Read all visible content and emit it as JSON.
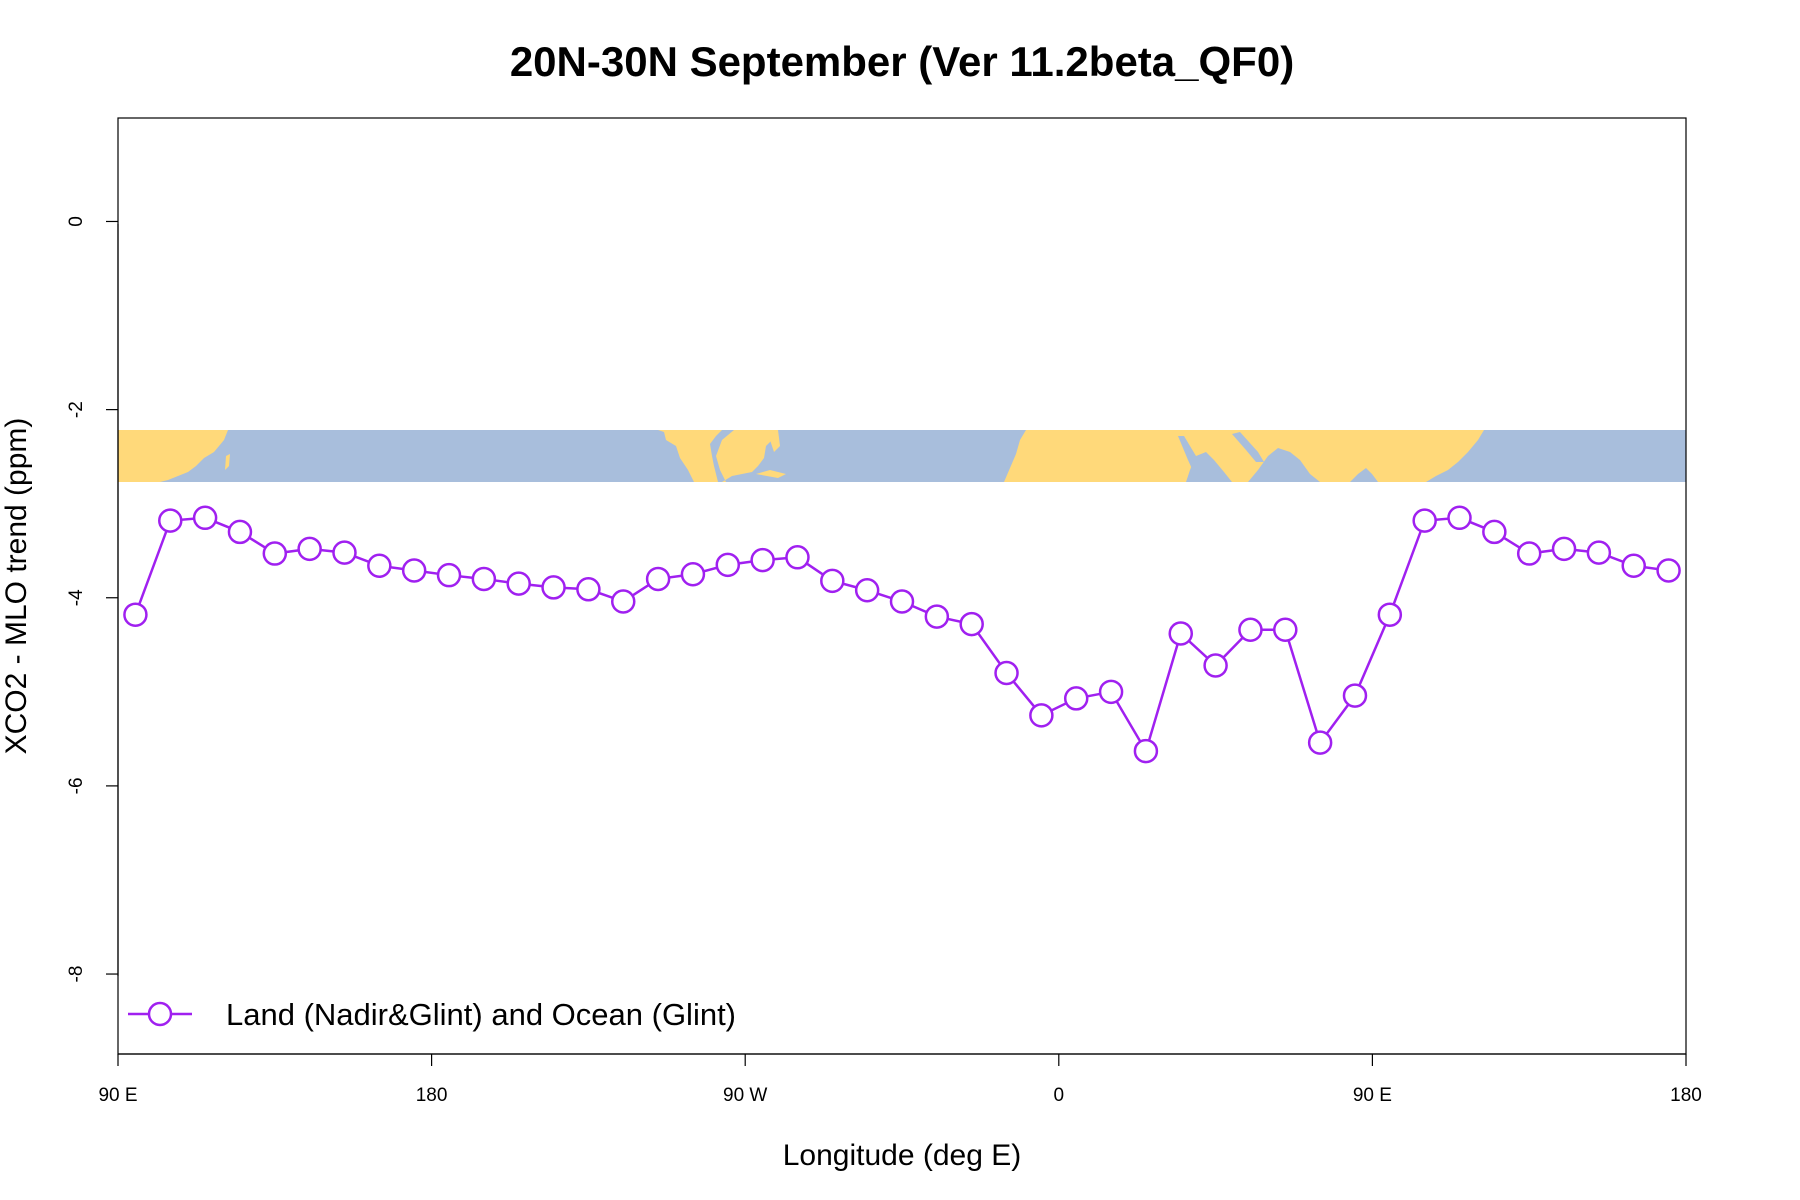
{
  "colors": {
    "series": "#a020f0",
    "land": "#ffd97a",
    "ocean": "#a8bedc",
    "axis": "#000000",
    "background": "#ffffff"
  },
  "chart_data": {
    "type": "line",
    "title": "20N-30N September (Ver 11.2beta_QF0)",
    "xlabel": "Longitude (deg E)",
    "ylabel": "XCO2 - MLO trend (ppm)",
    "xlim": [
      90,
      540
    ],
    "ylim": [
      -8.85,
      1.1
    ],
    "x_ticks": [
      {
        "value": 90,
        "label": "90 E"
      },
      {
        "value": 180,
        "label": "180"
      },
      {
        "value": 270,
        "label": "90 W"
      },
      {
        "value": 360,
        "label": "0"
      },
      {
        "value": 450,
        "label": "90 E"
      },
      {
        "value": 540,
        "label": "180"
      }
    ],
    "y_ticks": [
      {
        "value": 0,
        "label": "0"
      },
      {
        "value": -2,
        "label": "-2"
      },
      {
        "value": -4,
        "label": "-4"
      },
      {
        "value": -6,
        "label": "-6"
      },
      {
        "value": -8,
        "label": "-8"
      }
    ],
    "grid": false,
    "legend": {
      "position": "bottom-left",
      "marker": "open-circle"
    },
    "map_strip": {
      "description": "world map strip 20N-30N",
      "y_range": [
        -2.75,
        -2.22
      ]
    },
    "series": [
      {
        "name": "Land (Nadir&Glint) and Ocean (Glint)",
        "x": [
          95,
          105,
          115,
          125,
          135,
          145,
          155,
          165,
          175,
          185,
          195,
          205,
          215,
          225,
          235,
          245,
          255,
          265,
          275,
          285,
          295,
          305,
          315,
          325,
          335,
          345,
          355,
          365,
          375,
          385,
          395,
          405,
          415,
          425,
          435,
          445,
          455,
          465,
          475,
          485,
          495,
          505,
          515,
          525,
          535
        ],
        "values": [
          -4.18,
          -3.18,
          -3.15,
          -3.3,
          -3.53,
          -3.48,
          -3.52,
          -3.66,
          -3.71,
          -3.76,
          -3.8,
          -3.85,
          -3.89,
          -3.91,
          -4.04,
          -3.8,
          -3.75,
          -3.65,
          -3.6,
          -3.57,
          -3.82,
          -3.92,
          -4.04,
          -4.2,
          -4.28,
          -4.8,
          -5.25,
          -5.07,
          -5.0,
          -5.63,
          -4.38,
          -4.72,
          -4.34,
          -4.34,
          -5.54,
          -5.04,
          -4.18,
          -3.18,
          -3.15,
          -3.3,
          -3.53,
          -3.48,
          -3.52,
          -3.66,
          -3.71
        ]
      }
    ]
  }
}
